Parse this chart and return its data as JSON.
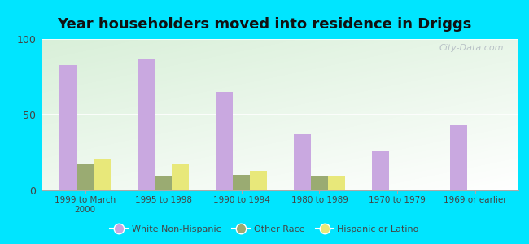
{
  "title": "Year householders moved into residence in Driggs",
  "categories": [
    "1999 to March\n2000",
    "1995 to 1998",
    "1990 to 1994",
    "1980 to 1989",
    "1970 to 1979",
    "1969 or earlier"
  ],
  "white": [
    83,
    87,
    65,
    37,
    26,
    43
  ],
  "other": [
    17,
    9,
    10,
    9,
    0,
    0
  ],
  "hispanic": [
    21,
    17,
    13,
    9,
    0,
    0
  ],
  "white_color": "#c9a8e0",
  "other_color": "#9aab72",
  "hispanic_color": "#e8e87a",
  "ylim": [
    0,
    100
  ],
  "yticks": [
    0,
    50,
    100
  ],
  "bar_width": 0.22,
  "outer_bg": "#00e5ff",
  "title_fontsize": 13,
  "watermark": "City-Data.com"
}
